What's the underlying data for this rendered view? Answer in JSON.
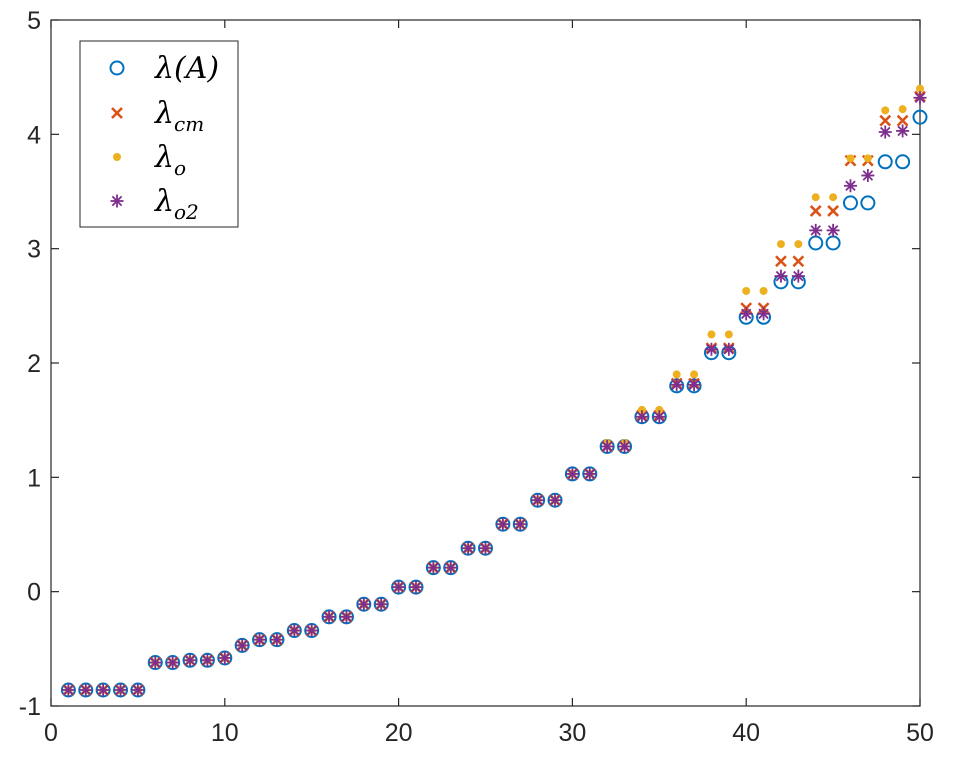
{
  "chart_data": {
    "type": "scatter",
    "title": "",
    "xlabel": "",
    "ylabel": "",
    "xlim": [
      0,
      50
    ],
    "ylim": [
      -1,
      5
    ],
    "xticks": [
      0,
      10,
      20,
      30,
      40,
      50
    ],
    "yticks": [
      -1,
      0,
      1,
      2,
      3,
      4,
      5
    ],
    "xtick_labels": [
      "0",
      "10",
      "20",
      "30",
      "40",
      "50"
    ],
    "ytick_labels": [
      "-1",
      "0",
      "1",
      "2",
      "3",
      "4",
      "5"
    ],
    "grid": false,
    "legend_position": "top-left",
    "x": [
      1,
      2,
      3,
      4,
      5,
      6,
      7,
      8,
      9,
      10,
      11,
      12,
      13,
      14,
      15,
      16,
      17,
      18,
      19,
      20,
      21,
      22,
      23,
      24,
      25,
      26,
      27,
      28,
      29,
      30,
      31,
      32,
      33,
      34,
      35,
      36,
      37,
      38,
      39,
      40,
      41,
      42,
      43,
      44,
      45,
      46,
      47,
      48,
      49,
      50
    ],
    "series": [
      {
        "name": "λ(A)",
        "legend_main": "λ(A)",
        "legend_sub": "",
        "marker": "circle",
        "color": "#0072BD",
        "values": [
          -0.86,
          -0.86,
          -0.86,
          -0.86,
          -0.86,
          -0.62,
          -0.62,
          -0.6,
          -0.6,
          -0.58,
          -0.47,
          -0.42,
          -0.42,
          -0.34,
          -0.34,
          -0.22,
          -0.22,
          -0.11,
          -0.11,
          0.04,
          0.04,
          0.21,
          0.21,
          0.38,
          0.38,
          0.59,
          0.59,
          0.8,
          0.8,
          1.03,
          1.03,
          1.27,
          1.27,
          1.53,
          1.53,
          1.8,
          1.8,
          2.09,
          2.09,
          2.4,
          2.4,
          2.71,
          2.71,
          3.05,
          3.05,
          3.4,
          3.4,
          3.76,
          3.76,
          4.15
        ]
      },
      {
        "name": "λcm",
        "legend_main": "λ",
        "legend_sub": "cm",
        "marker": "x",
        "color": "#D95319",
        "values": [
          -0.86,
          -0.86,
          -0.86,
          -0.86,
          -0.86,
          -0.62,
          -0.62,
          -0.6,
          -0.6,
          -0.58,
          -0.47,
          -0.42,
          -0.42,
          -0.34,
          -0.34,
          -0.22,
          -0.22,
          -0.11,
          -0.11,
          0.04,
          0.04,
          0.21,
          0.21,
          0.38,
          0.38,
          0.59,
          0.59,
          0.8,
          0.8,
          1.03,
          1.03,
          1.27,
          1.27,
          1.54,
          1.54,
          1.82,
          1.82,
          2.13,
          2.13,
          2.48,
          2.48,
          2.89,
          2.89,
          3.33,
          3.33,
          3.77,
          3.77,
          4.12,
          4.12,
          4.33
        ]
      },
      {
        "name": "λo",
        "legend_main": "λ",
        "legend_sub": "o",
        "marker": "dot",
        "color": "#EDB120",
        "values": [
          -0.86,
          -0.86,
          -0.86,
          -0.86,
          -0.86,
          -0.62,
          -0.62,
          -0.6,
          -0.6,
          -0.58,
          -0.47,
          -0.42,
          -0.42,
          -0.34,
          -0.34,
          -0.22,
          -0.22,
          -0.11,
          -0.11,
          0.04,
          0.04,
          0.21,
          0.21,
          0.38,
          0.38,
          0.59,
          0.59,
          0.8,
          0.8,
          1.03,
          1.03,
          1.3,
          1.3,
          1.59,
          1.59,
          1.9,
          1.9,
          2.25,
          2.25,
          2.63,
          2.63,
          3.04,
          3.04,
          3.45,
          3.45,
          3.79,
          3.79,
          4.21,
          4.22,
          4.4
        ]
      },
      {
        "name": "λo2",
        "legend_main": "λ",
        "legend_sub": "o2",
        "marker": "asterisk",
        "color": "#7E2F8E",
        "values": [
          -0.86,
          -0.86,
          -0.86,
          -0.86,
          -0.86,
          -0.62,
          -0.62,
          -0.6,
          -0.6,
          -0.58,
          -0.47,
          -0.42,
          -0.42,
          -0.34,
          -0.34,
          -0.22,
          -0.22,
          -0.11,
          -0.11,
          0.04,
          0.04,
          0.21,
          0.21,
          0.38,
          0.38,
          0.59,
          0.59,
          0.8,
          0.8,
          1.03,
          1.03,
          1.27,
          1.27,
          1.53,
          1.53,
          1.81,
          1.81,
          2.12,
          2.12,
          2.43,
          2.43,
          2.76,
          2.76,
          3.16,
          3.16,
          3.55,
          3.64,
          4.02,
          4.03,
          4.32
        ]
      }
    ]
  }
}
